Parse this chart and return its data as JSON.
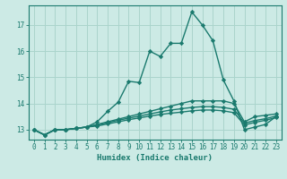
{
  "xlabel": "Humidex (Indice chaleur)",
  "background_color": "#cceae5",
  "grid_color": "#aad4cc",
  "line_color": "#1a7a6e",
  "x_values": [
    0,
    1,
    2,
    3,
    4,
    5,
    6,
    7,
    8,
    9,
    10,
    11,
    12,
    13,
    14,
    15,
    16,
    17,
    18,
    19,
    20,
    21,
    22,
    23
  ],
  "series": [
    [
      13.0,
      12.8,
      13.0,
      13.0,
      13.05,
      13.1,
      13.3,
      13.7,
      14.05,
      14.85,
      14.8,
      16.0,
      15.8,
      16.3,
      16.3,
      17.5,
      17.0,
      16.4,
      14.9,
      14.1,
      13.0,
      13.1,
      13.2,
      13.5
    ],
    [
      13.0,
      12.8,
      13.0,
      13.0,
      13.05,
      13.1,
      13.2,
      13.3,
      13.4,
      13.5,
      13.6,
      13.7,
      13.8,
      13.9,
      14.0,
      14.1,
      14.1,
      14.1,
      14.1,
      14.0,
      13.3,
      13.5,
      13.55,
      13.6
    ],
    [
      13.0,
      12.8,
      13.0,
      13.0,
      13.05,
      13.1,
      13.18,
      13.27,
      13.36,
      13.44,
      13.52,
      13.6,
      13.68,
      13.75,
      13.8,
      13.85,
      13.88,
      13.88,
      13.85,
      13.78,
      13.25,
      13.35,
      13.42,
      13.52
    ],
    [
      13.0,
      12.8,
      13.0,
      13.0,
      13.05,
      13.1,
      13.14,
      13.22,
      13.3,
      13.38,
      13.45,
      13.52,
      13.58,
      13.63,
      13.67,
      13.72,
      13.75,
      13.75,
      13.72,
      13.65,
      13.18,
      13.28,
      13.36,
      13.46
    ]
  ],
  "ylim": [
    12.62,
    17.75
  ],
  "yticks": [
    13,
    14,
    15,
    16,
    17
  ],
  "xticks": [
    0,
    1,
    2,
    3,
    4,
    5,
    6,
    7,
    8,
    9,
    10,
    11,
    12,
    13,
    14,
    15,
    16,
    17,
    18,
    19,
    20,
    21,
    22,
    23
  ],
  "marker": "D",
  "markersize": 2.2,
  "linewidth": 1.0,
  "tick_fontsize": 5.5,
  "xlabel_fontsize": 6.5
}
